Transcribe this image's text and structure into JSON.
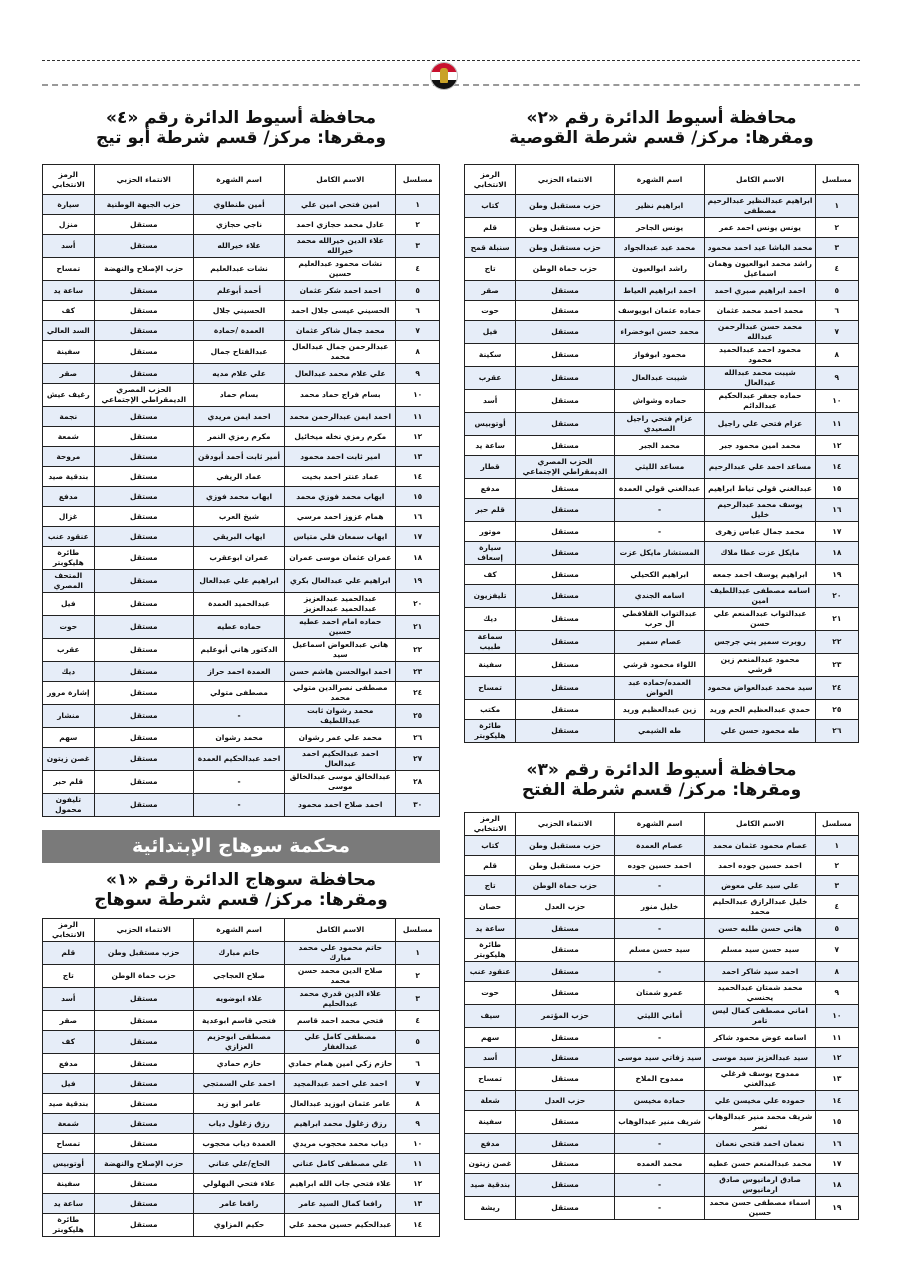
{
  "headers": [
    "مسلسل",
    "الاسم الكامل",
    "اسم الشهرة",
    "الانتماء الحزبي",
    "الرمز الانتخابي"
  ],
  "banner": "محكمة سوهاج الإبتدائية",
  "colors": {
    "row_alt": "#e6edf8",
    "banner": "#7a7a7a"
  },
  "logo": "egypt-emblem",
  "sections": {
    "asyut2": {
      "title1": "محافظة أسيوط الدائرة رقم «٢»",
      "title2": "ومقرها: مركز/ قسم شرطة القوصية",
      "rows": [
        [
          "١",
          "ابراهيم عبدالنظير عبدالرحيم مصطفى",
          "ابراهيم نظير",
          "حزب مستقبل وطن",
          "كتاب"
        ],
        [
          "٢",
          "يونس يونس احمد عمر",
          "يونس الجاحر",
          "حزب مستقبل وطن",
          "قلم"
        ],
        [
          "٣",
          "محمد الباشا عيد احمد محمود",
          "محمد عيد عبدالجواد",
          "حزب مستقبل وطن",
          "سنبلة قمح"
        ],
        [
          "٤",
          "راشد محمد ابوالعيون وهمان اسماعيل",
          "راشد ابوالعيون",
          "حزب حماة الوطن",
          "تاج"
        ],
        [
          "٥",
          "احمد ابراهيم صبري احمد",
          "احمد ابراهيم العياط",
          "مستقل",
          "صقر"
        ],
        [
          "٦",
          "محمد احمد محمد عثمان",
          "حماده عثمان ابويوسف",
          "مستقل",
          "حوت"
        ],
        [
          "٧",
          "محمد حسن عبدالرحمن عبدالله",
          "محمد حسن ابوخضراء",
          "مستقل",
          "فيل"
        ],
        [
          "٨",
          "محمود احمد عبدالحميد محمود",
          "محمود ابوفواز",
          "مستقل",
          "سكينة"
        ],
        [
          "٩",
          "شيبت محمد عبدالله عبدالعال",
          "شيبت عبدالعال",
          "مستقل",
          "عقرب"
        ],
        [
          "١٠",
          "حماده جعفر عبدالحكيم عبدالدائم",
          "حماده وشواش",
          "مستقل",
          "أسد"
        ],
        [
          "١١",
          "عزام فتحي علي راجيل",
          "عزام فتحي راجيل الصعيدي",
          "مستقل",
          "أوتوبيس"
        ],
        [
          "١٢",
          "محمد امين محمود جبر",
          "محمد الجبر",
          "مستقل",
          "ساعة يد"
        ],
        [
          "١٤",
          "مساعد احمد علي عبدالرحيم",
          "مساعد الليثي",
          "الحزب المصري الديمقراطي الإجتماعي",
          "قطار"
        ],
        [
          "١٥",
          "عبدالغني قولي تياط ابراهيم",
          "عبدالغني قولي العمدة",
          "مستقل",
          "مدفع"
        ],
        [
          "١٦",
          "يوسف محمد عبدالرحيم خليل",
          "-",
          "مستقل",
          "قلم حبر"
        ],
        [
          "١٧",
          "محمد جمال عباس زهرى",
          "-",
          "مستقل",
          "موتور"
        ],
        [
          "١٨",
          "مايكل عزت عطا ملاك",
          "المستشار مايكل عزت",
          "مستقل",
          "سيارة إسعاف"
        ],
        [
          "١٩",
          "ابراهيم يوسف احمد جمعه",
          "ابراهيم الكحيلي",
          "مستقل",
          "كف"
        ],
        [
          "٢٠",
          "اسامه مصطفى عبداللطيف امين",
          "اسامه الجندي",
          "مستقل",
          "تليفزيون"
        ],
        [
          "٢١",
          "عبدالتواب عبدالمنعم علي حسن",
          "عبدالتواب القلافطي ال حرب",
          "مستقل",
          "ديك"
        ],
        [
          "٢٢",
          "روبرت سمير يني جرجس",
          "عصام سمير",
          "مستقل",
          "سماعة طبيب"
        ],
        [
          "٢٣",
          "محمود عبدالمنعم زين قرشي",
          "اللواء محمود قرشي",
          "مستقل",
          "سفينة"
        ],
        [
          "٢٤",
          "سيد محمد عبدالعواض محمود",
          "العمده/حماده عبد العواض",
          "مستقل",
          "تمساح"
        ],
        [
          "٢٥",
          "حمدي عبدالعظيم الحم وريد",
          "زين عبدالعظيم وريد",
          "مستقل",
          "مكتب"
        ],
        [
          "٢٦",
          "طه محمود حسن علي",
          "طه الشيمي",
          "مستقل",
          "طائرة هليكوبتر"
        ]
      ]
    },
    "asyut3": {
      "title1": "محافظة أسيوط الدائرة رقم «٣»",
      "title2": "ومقرها: مركز/ قسم شرطة الفتح",
      "rows": [
        [
          "١",
          "عصام محمود عثمان محمد",
          "عصام العمدة",
          "حزب مستقبل وطن",
          "كتاب"
        ],
        [
          "٢",
          "احمد حسين جوده احمد",
          "احمد حسين جوده",
          "حزب مستقبل وطن",
          "قلم"
        ],
        [
          "٣",
          "علي سيد علي معوض",
          "-",
          "حزب حماة الوطن",
          "تاج"
        ],
        [
          "٤",
          "خليل عبدالرازق عبدالحليم محمد",
          "خليل منور",
          "حزب العدل",
          "حصان"
        ],
        [
          "٥",
          "هاني حسن طلبه حسن",
          "-",
          "مستقل",
          "ساعة يد"
        ],
        [
          "٧",
          "سيد حسن سيد مسلم",
          "سيد حسن مسلم",
          "مستقل",
          "طائرة هليكوبتر"
        ],
        [
          "٨",
          "احمد سيد شاكر احمد",
          "-",
          "مستقل",
          "عنقود عنب"
        ],
        [
          "٩",
          "محمد شمتان عبدالحميد يحنسي",
          "عمرو شمتان",
          "مستقل",
          "حوت"
        ],
        [
          "١٠",
          "اماني مصطفى كمال ليس تامر",
          "أماني الليثي",
          "حزب المؤتمر",
          "سيف"
        ],
        [
          "١١",
          "اسامه عوض محمود شاكر",
          "-",
          "مستقل",
          "سهم"
        ],
        [
          "١٢",
          "سيد عبدالعزيز سيد موسى",
          "سيد زفاتي سيد موسى",
          "مستقل",
          "أسد"
        ],
        [
          "١٣",
          "ممدوح يوسف فرغلي عبدالغني",
          "ممدوح الملاخ",
          "مستقل",
          "تمساح"
        ],
        [
          "١٤",
          "حموده علي مخيسن علي",
          "حمادة مخيسن",
          "حزب العدل",
          "شعلة"
        ],
        [
          "١٥",
          "شريف محمد منير عبدالوهاب نصر",
          "شريف منير عبدالوهاب",
          "مستقل",
          "سفينة"
        ],
        [
          "١٦",
          "نعمان احمد فتحي نعمان",
          "-",
          "مستقل",
          "مدفع"
        ],
        [
          "١٧",
          "محمد عبدالمنعم حسن عطيه",
          "محمد العمده",
          "مستقل",
          "غصن زيتون"
        ],
        [
          "١٨",
          "صادق ارمانيوس صادق ارمانيوس",
          "-",
          "مستقل",
          "بندقية صيد"
        ],
        [
          "١٩",
          "اسماء مصطفى حسن محمد حسين",
          "-",
          "مستقل",
          "ريشة"
        ]
      ]
    },
    "asyut4": {
      "title1": "محافظة أسيوط الدائرة رقم «٤»",
      "title2": "ومقرها: مركز/ قسم شرطة أبو تيج",
      "rows": [
        [
          "١",
          "امين فتحي امين علي",
          "أمين طنطاوي",
          "حزب الجبهة الوطنية",
          "سيارة"
        ],
        [
          "٢",
          "عادل محمد حجازي احمد",
          "ناجي حجازي",
          "مستقل",
          "منزل"
        ],
        [
          "٣",
          "علاء الدين خيرالله محمد خيرالله",
          "علاء خيرالله",
          "مستقل",
          "أسد"
        ],
        [
          "٤",
          "نشات محمود عبدالعليم حسين",
          "نشات عبدالعليم",
          "حزب الإصلاح والنهضة",
          "تمساح"
        ],
        [
          "٥",
          "احمد احمد شكر عثمان",
          "أحمد أبوعلم",
          "مستقل",
          "ساعة يد"
        ],
        [
          "٦",
          "الحسيني عيسى جلال احمد",
          "الحسيني جلال",
          "مستقل",
          "كف"
        ],
        [
          "٧",
          "محمد جمال شاكر عثمان",
          "العمدة /حمادة",
          "مستقل",
          "السد العالي"
        ],
        [
          "٨",
          "عبدالرحمن جمال عبدالعال محمد",
          "عبدالفتاح جمال",
          "مستقل",
          "سفينة"
        ],
        [
          "٩",
          "علي علام محمد عبدالعال",
          "علي علام مديه",
          "مستقل",
          "صقر"
        ],
        [
          "١٠",
          "بسام فراج حماد محمد",
          "بسام حماد",
          "الحزب المصري الديمقراطي الإجتماعي",
          "رغيف عيش"
        ],
        [
          "١١",
          "احمد ايمن عبدالرحمن محمد",
          "احمد ايمن مريدي",
          "مستقل",
          "نجمة"
        ],
        [
          "١٢",
          "مكرم رمزي نخله ميخائيل",
          "مكرم رمزي النمر",
          "مستقل",
          "شمعة"
        ],
        [
          "١٣",
          "امير ثابت احمد محمود",
          "أمير ثابت أحمد أبودقن",
          "مستقل",
          "مروحة"
        ],
        [
          "١٤",
          "عماد عنتر احمد بخيت",
          "عماد الريفي",
          "مستقل",
          "بندقية صيد"
        ],
        [
          "١٥",
          "ايهاب محمد فوزي محمد",
          "ايهاب محمد فوزي",
          "مستقل",
          "مدفع"
        ],
        [
          "١٦",
          "همام عزوز احمد مرسي",
          "شيخ العرب",
          "مستقل",
          "غزال"
        ],
        [
          "١٧",
          "ايهاب سمعان فلي متياس",
          "ايهاب البريقي",
          "مستقل",
          "عنقود عنب"
        ],
        [
          "١٨",
          "عمران عثمان موسى عمران",
          "عمران ابوعقرب",
          "مستقل",
          "طائرة هليكوبتر"
        ],
        [
          "١٩",
          "ابراهيم علي عبدالعال بكري",
          "ابراهيم علي عبدالعال",
          "مستقل",
          "المتحف المصري"
        ],
        [
          "٢٠",
          "عبدالحميد عبدالعزيز عبدالحميد عبدالعزيز",
          "عبدالحميد العمدة",
          "مستقل",
          "فيل"
        ],
        [
          "٢١",
          "حماده امام احمد عطيه حسين",
          "حماده عطيه",
          "مستقل",
          "حوت"
        ],
        [
          "٢٢",
          "هاني عبدالعواض اسماعيل سيد",
          "الدكتور هاني أبوعليم",
          "مستقل",
          "عقرب"
        ],
        [
          "٢٣",
          "احمد ابوالحسن هاشم حسن",
          "العمدة احمد حراز",
          "مستقل",
          "ديك"
        ],
        [
          "٢٤",
          "مصطفى نصرالدين متولي محمد",
          "مصطفى متولي",
          "مستقل",
          "إشارة مرور"
        ],
        [
          "٢٥",
          "محمد رشوان ثابت عبداللطيف",
          "-",
          "مستقل",
          "منشار"
        ],
        [
          "٢٦",
          "محمد علي عمر رشوان",
          "محمد رشوان",
          "مستقل",
          "سهم"
        ],
        [
          "٢٧",
          "احمد عبدالحكيم احمد عبدالعال",
          "احمد عبدالحكيم العمدة",
          "مستقل",
          "غصن زيتون"
        ],
        [
          "٢٨",
          "عبدالخالق موسى عبدالخالق موسى",
          "-",
          "مستقل",
          "قلم حبر"
        ],
        [
          "٣٠",
          "احمد صلاح احمد محمود",
          "-",
          "مستقل",
          "تليفون محمول"
        ]
      ]
    },
    "sohag1": {
      "title1": "محافظة سوهاج الدائرة رقم «١»",
      "title2": "ومقرها: مركز/ قسم شرطة سوهاج",
      "rows": [
        [
          "١",
          "حاتم محمود علي محمد مبارك",
          "حاتم مبارك",
          "حزب مستقبل وطن",
          "قلم"
        ],
        [
          "٢",
          "صلاح الدين محمد حسن محمد",
          "صلاح العجاجي",
          "حزب حماة الوطن",
          "تاج"
        ],
        [
          "٣",
          "علاء الدين قدري محمد عبدالحليم",
          "علاء ابوضويه",
          "مستقل",
          "أسد"
        ],
        [
          "٤",
          "فتحي محمد احمد قاسم",
          "فتحي قاسم ابوعدية",
          "مستقل",
          "صقر"
        ],
        [
          "٥",
          "مصطفى كامل علي عبدالغفار",
          "مصطفى ابوحزيم العزازي",
          "مستقل",
          "كف"
        ],
        [
          "٦",
          "حازم زكي امين همام حمادي",
          "حازم حمادي",
          "مستقل",
          "مدفع"
        ],
        [
          "٧",
          "احمد علي احمد عبدالمجيد",
          "احمد علي السمتجي",
          "مستقل",
          "فيل"
        ],
        [
          "٨",
          "عامر عثمان ابوزيد عبدالعال",
          "عامر ابو زيد",
          "مستقل",
          "بندقية صيد"
        ],
        [
          "٩",
          "رزق زغلول محمد ابراهيم",
          "رزق زغلول دياب",
          "مستقل",
          "شمعة"
        ],
        [
          "١٠",
          "دياب محمد محجوب مريدي",
          "العمدة دياب محجوب",
          "مستقل",
          "تمساح"
        ],
        [
          "١١",
          "علي مصطفى كامل عناني",
          "الحاج/علي عناني",
          "حزب الإصلاح والنهضة",
          "أوتوبيس"
        ],
        [
          "١٢",
          "علاء فتحي جاب الله ابراهيم",
          "علاء فتحي البهلولي",
          "مستقل",
          "سفينة"
        ],
        [
          "١٣",
          "رافعا كمال السيد عامر",
          "رافعا عامر",
          "مستقل",
          "ساعة يد"
        ],
        [
          "١٤",
          "عبدالحكيم حسين محمد علي",
          "حكيم المزاوي",
          "مستقل",
          "طائرة هليكوبتر"
        ]
      ]
    }
  }
}
